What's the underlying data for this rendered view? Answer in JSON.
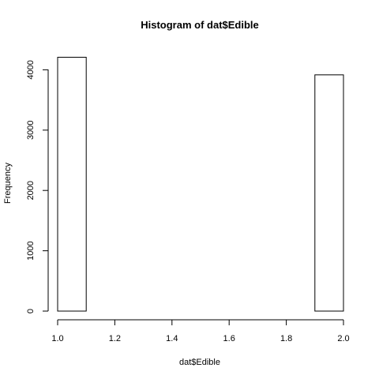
{
  "chart_data": {
    "type": "bar",
    "title": "Histogram of dat$Edible",
    "xlabel": "dat$Edible",
    "ylabel": "Frequency",
    "xlim": [
      1.0,
      2.0
    ],
    "ylim": [
      0,
      4208
    ],
    "grid": false,
    "bins": [
      {
        "x0": 1.0,
        "x1": 1.1,
        "count": 4208
      },
      {
        "x0": 1.1,
        "x1": 1.2,
        "count": 0
      },
      {
        "x0": 1.2,
        "x1": 1.3,
        "count": 0
      },
      {
        "x0": 1.3,
        "x1": 1.4,
        "count": 0
      },
      {
        "x0": 1.4,
        "x1": 1.5,
        "count": 0
      },
      {
        "x0": 1.5,
        "x1": 1.6,
        "count": 0
      },
      {
        "x0": 1.6,
        "x1": 1.7,
        "count": 0
      },
      {
        "x0": 1.7,
        "x1": 1.8,
        "count": 0
      },
      {
        "x0": 1.8,
        "x1": 1.9,
        "count": 0
      },
      {
        "x0": 1.9,
        "x1": 2.0,
        "count": 3916
      }
    ],
    "xticks": [
      "1.0",
      "1.2",
      "1.4",
      "1.6",
      "1.8",
      "2.0"
    ],
    "yticks": [
      "0",
      "1000",
      "2000",
      "3000",
      "4000"
    ]
  }
}
